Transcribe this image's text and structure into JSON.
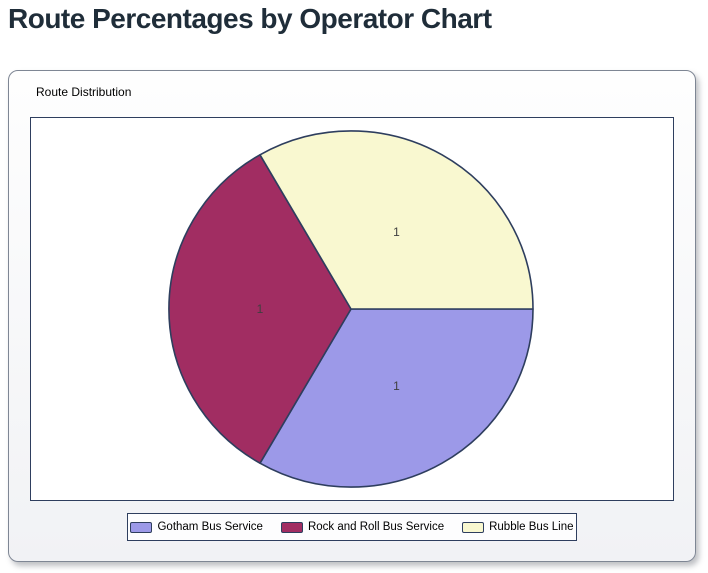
{
  "page": {
    "title": "Route Percentages by Operator Chart"
  },
  "panel": {
    "group_label": "Route Distribution"
  },
  "chart_data": {
    "type": "pie",
    "title": "Route Distribution",
    "labels": [
      "Gotham Bus Service",
      "Rock and Roll Bus Service",
      "Rubble Bus Line"
    ],
    "values": [
      1,
      1,
      1
    ],
    "slice_labels": [
      "1",
      "1",
      "1"
    ],
    "colors": [
      "#9c99e8",
      "#a12d62",
      "#f9f8d0"
    ],
    "stroke_color": "#2e3e5e",
    "slice_label_color": "#3f3f3f",
    "legend_position": "bottom",
    "start_angle_deg": 0,
    "direction": "clockwise"
  }
}
